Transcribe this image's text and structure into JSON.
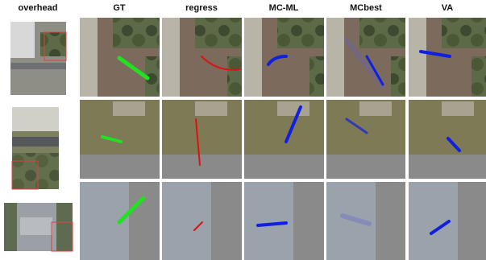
{
  "header": {
    "columns": [
      "overhead",
      "GT",
      "regress",
      "MC-ML",
      "MCbest",
      "VA"
    ]
  }
}
